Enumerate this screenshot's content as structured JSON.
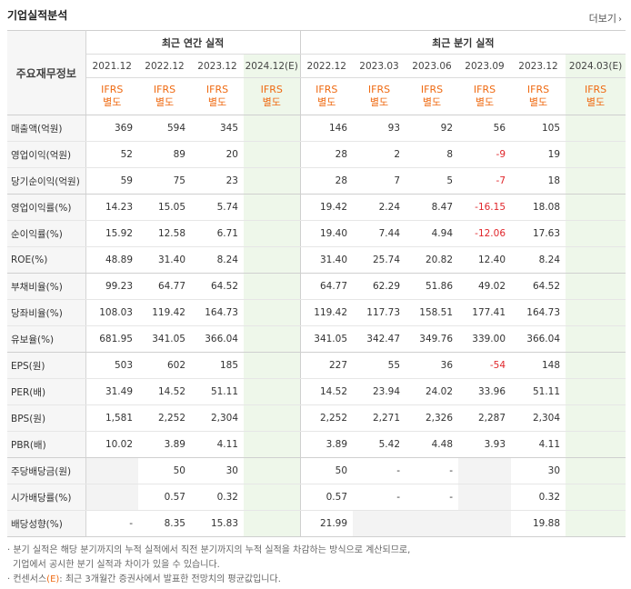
{
  "header": {
    "title": "기업실적분석",
    "more_label": "더보기",
    "more_arrow": "›"
  },
  "table": {
    "corner_label": "주요재무정보",
    "annual_group": "최근 연간 실적",
    "quarter_group": "최근 분기 실적",
    "annual_periods": [
      "2021.12",
      "2022.12",
      "2023.12",
      "2024.12(E)"
    ],
    "quarter_periods": [
      "2022.12",
      "2023.03",
      "2023.06",
      "2023.09",
      "2023.12",
      "2024.03(E)"
    ],
    "ifrs_line1": "IFRS",
    "ifrs_line2": "별도",
    "rows": [
      {
        "label": "매출액(억원)",
        "a": [
          "369",
          "594",
          "345",
          ""
        ],
        "q": [
          "146",
          "93",
          "92",
          "56",
          "105",
          ""
        ]
      },
      {
        "label": "영업이익(억원)",
        "a": [
          "52",
          "89",
          "20",
          ""
        ],
        "q": [
          "28",
          "2",
          "8",
          "-9",
          "19",
          ""
        ]
      },
      {
        "label": "당기순이익(억원)",
        "a": [
          "59",
          "75",
          "23",
          ""
        ],
        "q": [
          "28",
          "7",
          "5",
          "-7",
          "18",
          ""
        ]
      },
      {
        "label": "영업이익률(%)",
        "a": [
          "14.23",
          "15.05",
          "5.74",
          ""
        ],
        "q": [
          "19.42",
          "2.24",
          "8.47",
          "-16.15",
          "18.08",
          ""
        ]
      },
      {
        "label": "순이익률(%)",
        "a": [
          "15.92",
          "12.58",
          "6.71",
          ""
        ],
        "q": [
          "19.40",
          "7.44",
          "4.94",
          "-12.06",
          "17.63",
          ""
        ]
      },
      {
        "label": "ROE(%)",
        "a": [
          "48.89",
          "31.40",
          "8.24",
          ""
        ],
        "q": [
          "31.40",
          "25.74",
          "20.82",
          "12.40",
          "8.24",
          ""
        ]
      },
      {
        "label": "부채비율(%)",
        "a": [
          "99.23",
          "64.77",
          "64.52",
          ""
        ],
        "q": [
          "64.77",
          "62.29",
          "51.86",
          "49.02",
          "64.52",
          ""
        ]
      },
      {
        "label": "당좌비율(%)",
        "a": [
          "108.03",
          "119.42",
          "164.73",
          ""
        ],
        "q": [
          "119.42",
          "117.73",
          "158.51",
          "177.41",
          "164.73",
          ""
        ]
      },
      {
        "label": "유보율(%)",
        "a": [
          "681.95",
          "341.05",
          "366.04",
          ""
        ],
        "q": [
          "341.05",
          "342.47",
          "349.76",
          "339.00",
          "366.04",
          ""
        ]
      },
      {
        "label": "EPS(원)",
        "a": [
          "503",
          "602",
          "185",
          ""
        ],
        "q": [
          "227",
          "55",
          "36",
          "-54",
          "148",
          ""
        ]
      },
      {
        "label": "PER(배)",
        "a": [
          "31.49",
          "14.52",
          "51.11",
          ""
        ],
        "q": [
          "14.52",
          "23.94",
          "24.02",
          "33.96",
          "51.11",
          ""
        ]
      },
      {
        "label": "BPS(원)",
        "a": [
          "1,581",
          "2,252",
          "2,304",
          ""
        ],
        "q": [
          "2,252",
          "2,271",
          "2,326",
          "2,287",
          "2,304",
          ""
        ]
      },
      {
        "label": "PBR(배)",
        "a": [
          "10.02",
          "3.89",
          "4.11",
          ""
        ],
        "q": [
          "3.89",
          "5.42",
          "4.48",
          "3.93",
          "4.11",
          ""
        ]
      },
      {
        "label": "주당배당금(원)",
        "a": [
          "",
          "50",
          "30",
          ""
        ],
        "q": [
          "50",
          "-",
          "-",
          "",
          "30",
          ""
        ]
      },
      {
        "label": "시가배당률(%)",
        "a": [
          "",
          "0.57",
          "0.32",
          ""
        ],
        "q": [
          "0.57",
          "-",
          "-",
          "",
          "0.32",
          ""
        ]
      },
      {
        "label": "배당성향(%)",
        "a": [
          "-",
          "8.35",
          "15.83",
          ""
        ],
        "q": [
          "21.99",
          "",
          "",
          "",
          "19.88",
          ""
        ]
      }
    ]
  },
  "notes": {
    "note1": "· 분기 실적은 해당 분기까지의 누적 실적에서 직전 분기까지의 누적 실적을 차감하는 방식으로 계산되므로,",
    "note1b": "기업에서 공시한 분기 실적과 차이가 있을 수 있습니다.",
    "note2a": "· 컨센서스",
    "note2e": "(E)",
    "note2b": ": 최근 3개월간 증권사에서 발표한 전망치의 평균값입니다."
  },
  "colors": {
    "ifrs": "#ef6a12",
    "negative": "#e0262b",
    "estimate_bg": "#eef7ea"
  }
}
